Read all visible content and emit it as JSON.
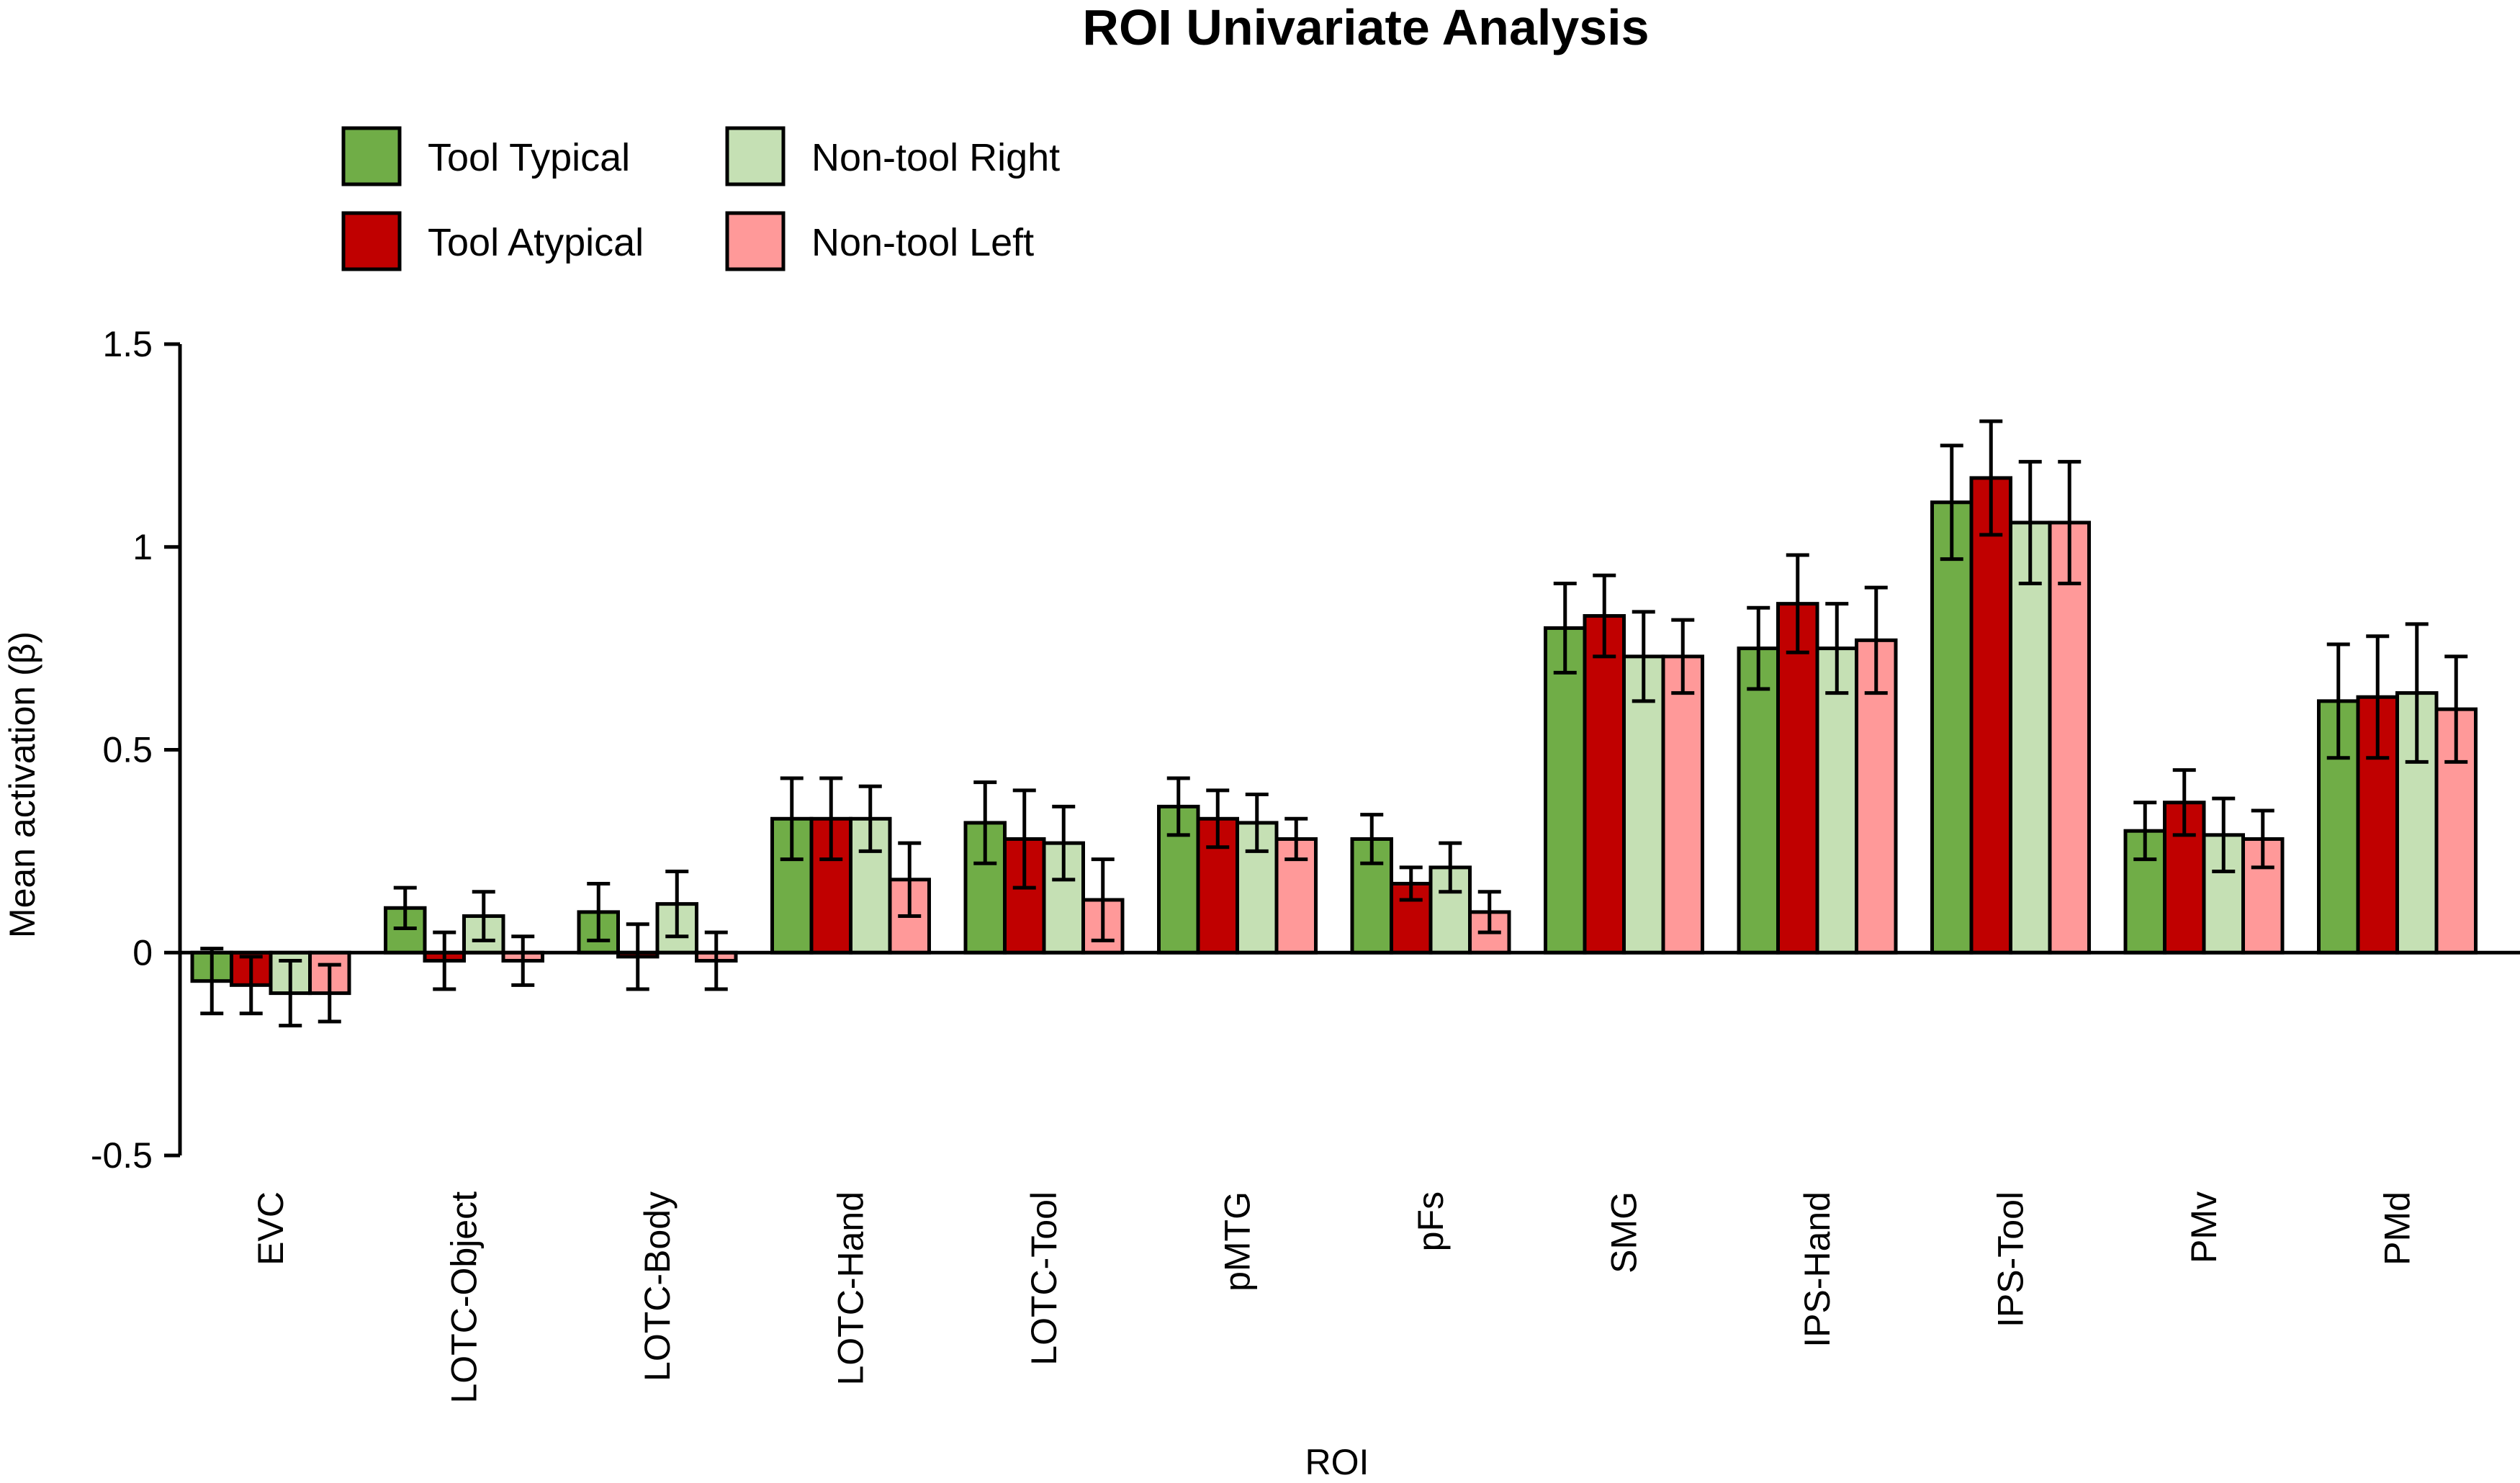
{
  "chart_data": {
    "type": "bar",
    "title": "ROI Univariate Analysis",
    "xlabel": "ROI",
    "ylabel": "Mean activation (β)",
    "ylim": [
      -0.5,
      1.5
    ],
    "yticks": [
      {
        "value": 1.5,
        "label": "1.5"
      },
      {
        "value": 1,
        "label": "1"
      },
      {
        "value": 0.5,
        "label": "0.5"
      },
      {
        "value": 0,
        "label": "0"
      },
      {
        "value": -0.5,
        "label": "-0.5"
      }
    ],
    "grid": false,
    "legend_position": "top-left",
    "categories": [
      "EVC",
      "LOTC-Object",
      "LOTC-Body",
      "LOTC-Hand",
      "LOTC-Tool",
      "pMTG",
      "pFs",
      "SMG",
      "IPS-Hand",
      "IPS-Tool",
      "PMv",
      "PMd"
    ],
    "series": [
      {
        "name": "Tool Typical",
        "color": "#70ad47",
        "values": [
          -0.07,
          0.11,
          0.1,
          0.33,
          0.32,
          0.36,
          0.28,
          0.8,
          0.75,
          1.11,
          0.3,
          0.62
        ],
        "errors": [
          0.08,
          0.05,
          0.07,
          0.1,
          0.1,
          0.07,
          0.06,
          0.11,
          0.1,
          0.14,
          0.07,
          0.14
        ]
      },
      {
        "name": "Tool Atypical",
        "color": "#c00000",
        "values": [
          -0.08,
          -0.02,
          -0.01,
          0.33,
          0.28,
          0.33,
          0.17,
          0.83,
          0.86,
          1.17,
          0.37,
          0.63
        ],
        "errors": [
          0.07,
          0.07,
          0.08,
          0.1,
          0.12,
          0.07,
          0.04,
          0.1,
          0.12,
          0.14,
          0.08,
          0.15
        ]
      },
      {
        "name": "Non-tool Right",
        "color": "#c5e0b4",
        "values": [
          -0.1,
          0.09,
          0.12,
          0.33,
          0.27,
          0.32,
          0.21,
          0.73,
          0.75,
          1.06,
          0.29,
          0.64
        ],
        "errors": [
          0.08,
          0.06,
          0.08,
          0.08,
          0.09,
          0.07,
          0.06,
          0.11,
          0.11,
          0.15,
          0.09,
          0.17
        ]
      },
      {
        "name": "Non-tool Left",
        "color": "#ff9999",
        "values": [
          -0.1,
          -0.02,
          -0.02,
          0.18,
          0.13,
          0.28,
          0.1,
          0.73,
          0.77,
          1.06,
          0.28,
          0.6
        ],
        "errors": [
          0.07,
          0.06,
          0.07,
          0.09,
          0.1,
          0.05,
          0.05,
          0.09,
          0.13,
          0.15,
          0.07,
          0.13
        ]
      }
    ]
  }
}
